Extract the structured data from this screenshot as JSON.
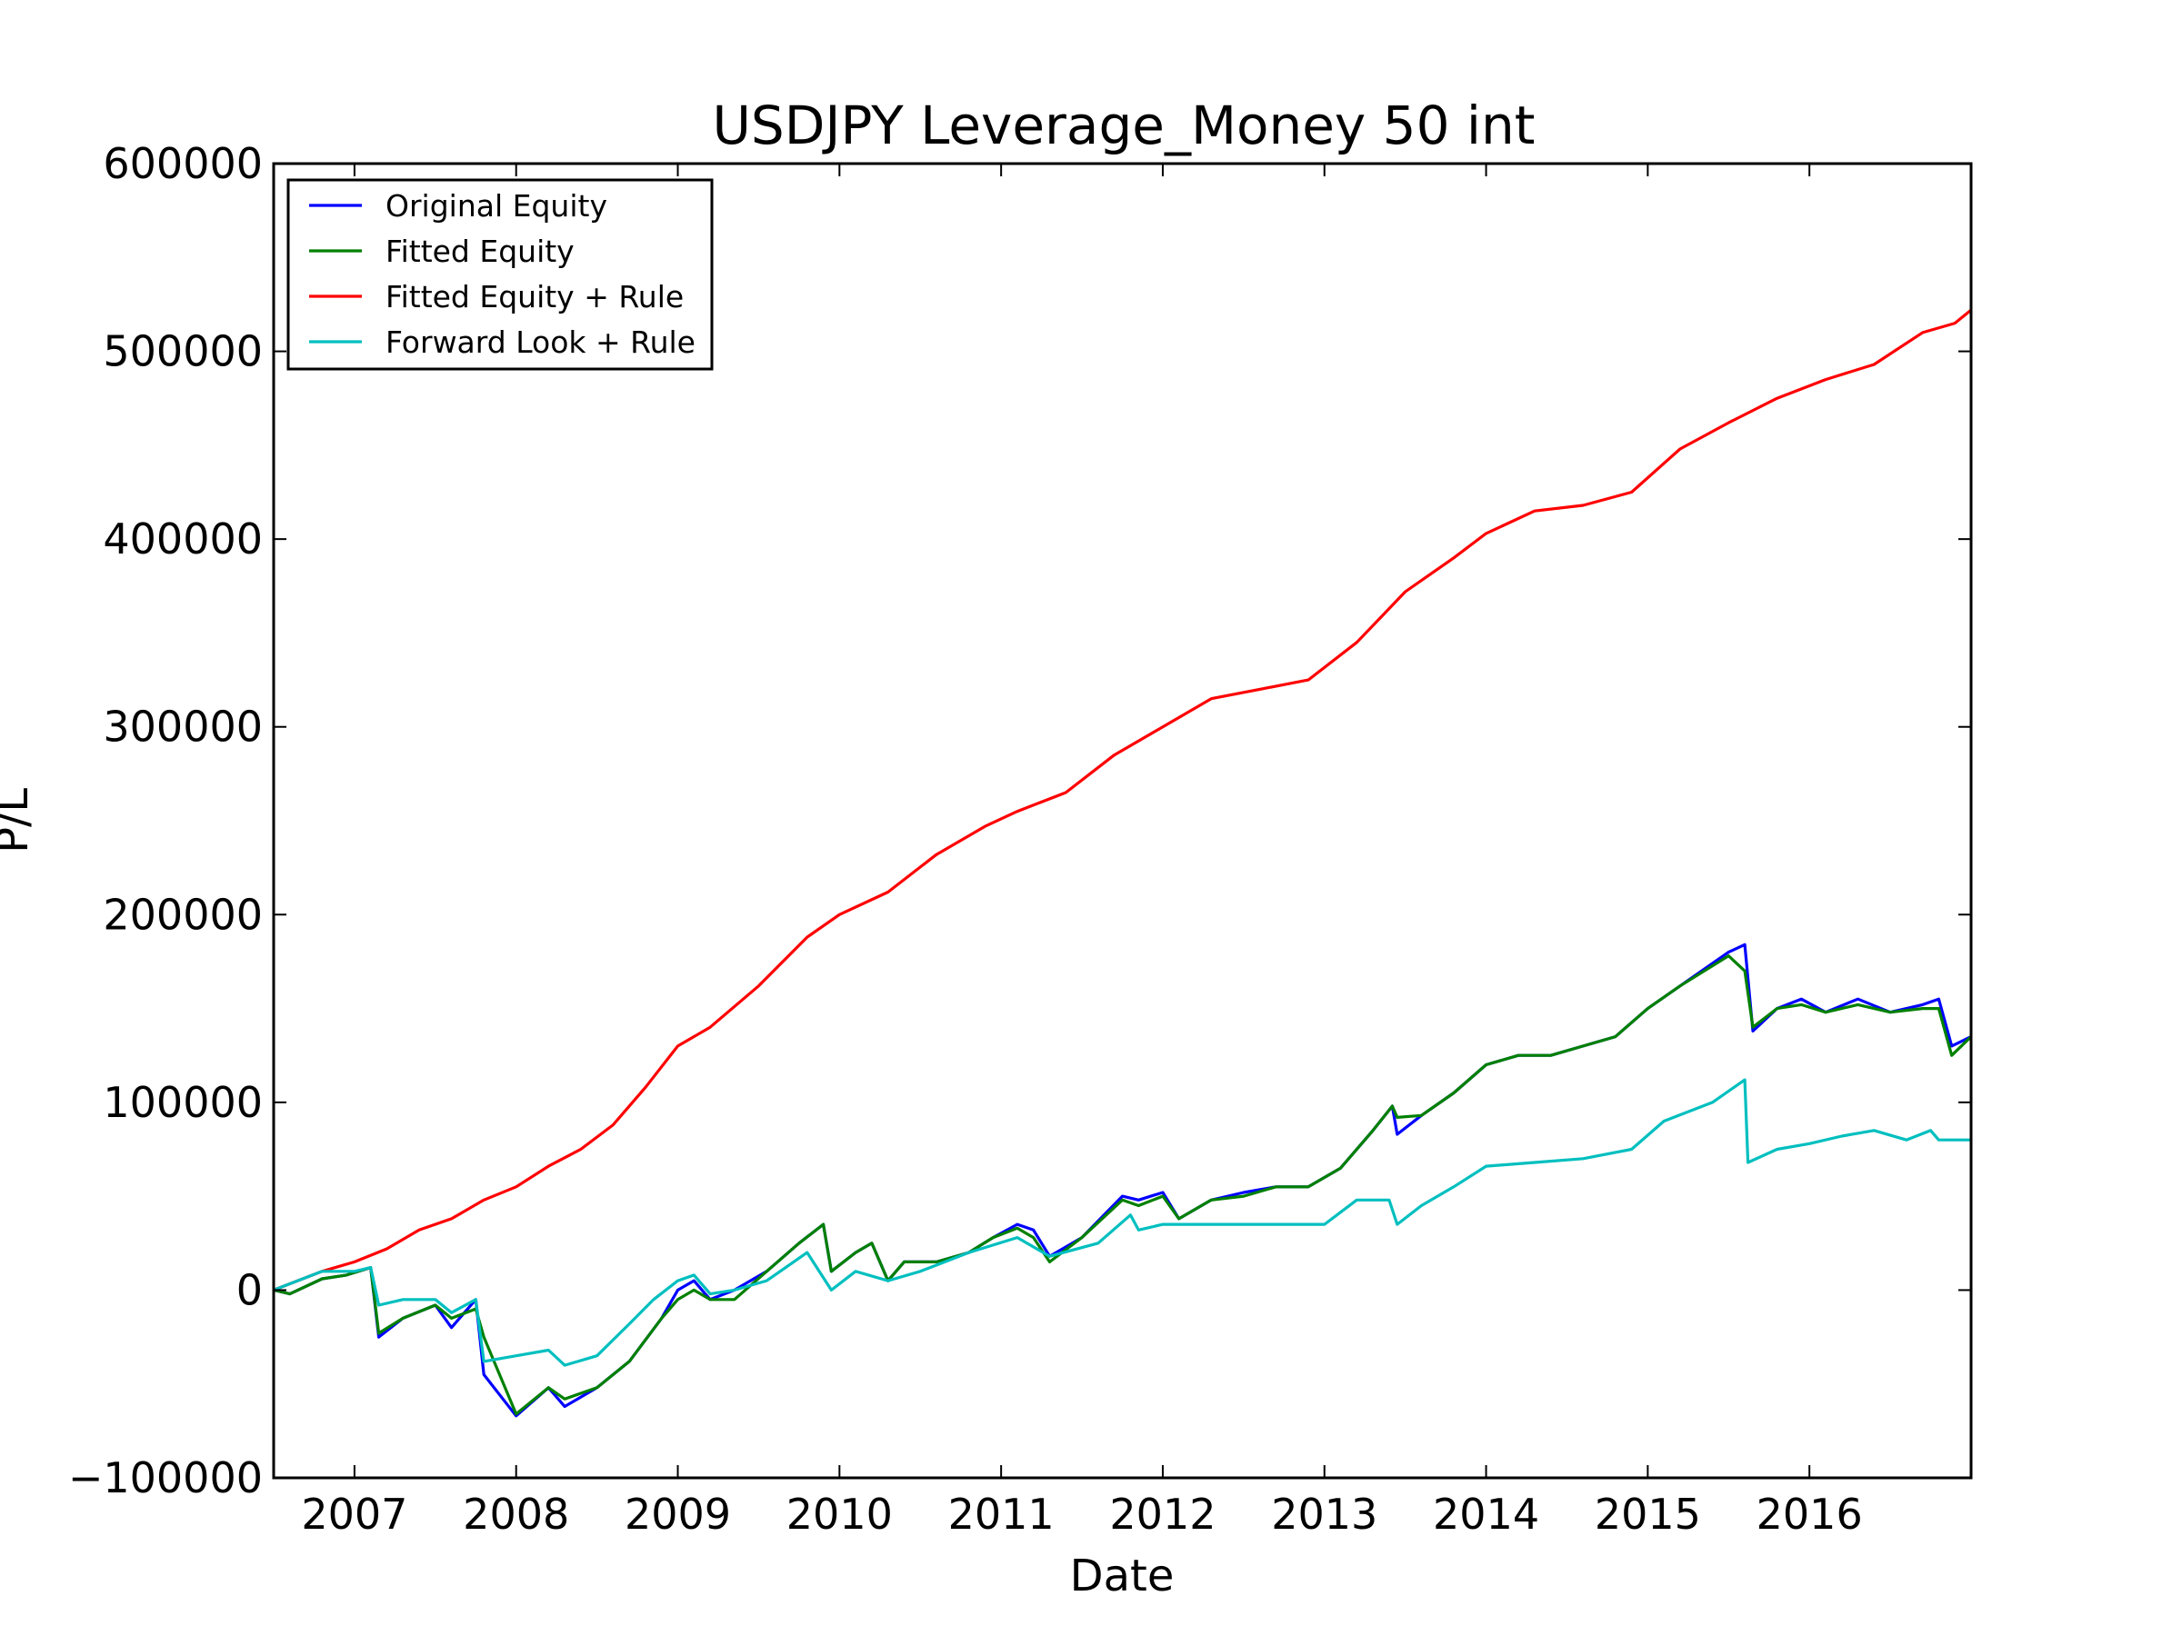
{
  "chart_data": {
    "type": "line",
    "title": "USDJPY Leverage_Money 50 int",
    "xlabel": "Date",
    "ylabel": "P/L",
    "xlim": [
      2006.5,
      2017.0
    ],
    "ylim": [
      -100000,
      600000
    ],
    "x_ticks": [
      2007,
      2008,
      2009,
      2010,
      2011,
      2012,
      2013,
      2014,
      2015,
      2016
    ],
    "x_tick_labels": [
      "2007",
      "2008",
      "2009",
      "2010",
      "2011",
      "2012",
      "2013",
      "2014",
      "2015",
      "2016"
    ],
    "y_ticks": [
      -100000,
      0,
      100000,
      200000,
      300000,
      400000,
      500000,
      600000
    ],
    "y_tick_labels": [
      "−100000",
      "0",
      "100000",
      "200000",
      "300000",
      "400000",
      "500000",
      "600000"
    ],
    "grid": false,
    "legend_position": "top-left",
    "series": [
      {
        "name": "Original Equity",
        "color": "#0000ff",
        "points": [
          [
            2006.5,
            0
          ],
          [
            2006.6,
            -2000
          ],
          [
            2006.8,
            6000
          ],
          [
            2006.95,
            8000
          ],
          [
            2007.1,
            12000
          ],
          [
            2007.15,
            -25000
          ],
          [
            2007.3,
            -15000
          ],
          [
            2007.5,
            -8000
          ],
          [
            2007.6,
            -20000
          ],
          [
            2007.75,
            -5000
          ],
          [
            2007.8,
            -45000
          ],
          [
            2008.0,
            -67000
          ],
          [
            2008.2,
            -52000
          ],
          [
            2008.3,
            -62000
          ],
          [
            2008.5,
            -52000
          ],
          [
            2008.7,
            -38000
          ],
          [
            2008.9,
            -15000
          ],
          [
            2009.0,
            0
          ],
          [
            2009.1,
            5000
          ],
          [
            2009.2,
            -5000
          ],
          [
            2009.35,
            0
          ],
          [
            2009.55,
            10000
          ],
          [
            2009.75,
            25000
          ],
          [
            2009.9,
            35000
          ],
          [
            2009.95,
            10000
          ],
          [
            2010.1,
            20000
          ],
          [
            2010.2,
            25000
          ],
          [
            2010.3,
            5000
          ],
          [
            2010.4,
            15000
          ],
          [
            2010.6,
            15000
          ],
          [
            2010.8,
            20000
          ],
          [
            2010.95,
            28000
          ],
          [
            2011.1,
            35000
          ],
          [
            2011.2,
            32000
          ],
          [
            2011.3,
            18000
          ],
          [
            2011.5,
            28000
          ],
          [
            2011.75,
            50000
          ],
          [
            2011.85,
            48000
          ],
          [
            2012.0,
            52000
          ],
          [
            2012.1,
            38000
          ],
          [
            2012.3,
            48000
          ],
          [
            2012.5,
            52000
          ],
          [
            2012.7,
            55000
          ],
          [
            2012.9,
            55000
          ],
          [
            2013.1,
            65000
          ],
          [
            2013.3,
            85000
          ],
          [
            2013.42,
            98000
          ],
          [
            2013.45,
            83000
          ],
          [
            2013.6,
            93000
          ],
          [
            2013.8,
            105000
          ],
          [
            2014.0,
            120000
          ],
          [
            2014.2,
            125000
          ],
          [
            2014.4,
            125000
          ],
          [
            2014.6,
            130000
          ],
          [
            2014.8,
            135000
          ],
          [
            2015.0,
            150000
          ],
          [
            2015.2,
            162000
          ],
          [
            2015.5,
            180000
          ],
          [
            2015.6,
            184000
          ],
          [
            2015.65,
            138000
          ],
          [
            2015.8,
            150000
          ],
          [
            2015.95,
            155000
          ],
          [
            2016.1,
            148000
          ],
          [
            2016.3,
            155000
          ],
          [
            2016.5,
            148000
          ],
          [
            2016.7,
            152000
          ],
          [
            2016.8,
            155000
          ],
          [
            2016.88,
            130000
          ],
          [
            2017.0,
            135000
          ]
        ]
      },
      {
        "name": "Fitted Equity",
        "color": "#008000",
        "points": [
          [
            2006.5,
            0
          ],
          [
            2006.6,
            -2000
          ],
          [
            2006.8,
            6000
          ],
          [
            2006.95,
            8000
          ],
          [
            2007.1,
            12000
          ],
          [
            2007.15,
            -23000
          ],
          [
            2007.3,
            -15000
          ],
          [
            2007.5,
            -8000
          ],
          [
            2007.6,
            -15000
          ],
          [
            2007.75,
            -10000
          ],
          [
            2007.8,
            -25000
          ],
          [
            2008.0,
            -66000
          ],
          [
            2008.2,
            -52000
          ],
          [
            2008.3,
            -58000
          ],
          [
            2008.5,
            -52000
          ],
          [
            2008.7,
            -38000
          ],
          [
            2008.9,
            -15000
          ],
          [
            2009.0,
            -5000
          ],
          [
            2009.1,
            0
          ],
          [
            2009.2,
            -5000
          ],
          [
            2009.35,
            -5000
          ],
          [
            2009.55,
            10000
          ],
          [
            2009.75,
            25000
          ],
          [
            2009.9,
            35000
          ],
          [
            2009.95,
            10000
          ],
          [
            2010.1,
            20000
          ],
          [
            2010.2,
            25000
          ],
          [
            2010.3,
            5000
          ],
          [
            2010.4,
            15000
          ],
          [
            2010.6,
            15000
          ],
          [
            2010.8,
            20000
          ],
          [
            2010.95,
            28000
          ],
          [
            2011.1,
            33000
          ],
          [
            2011.2,
            28000
          ],
          [
            2011.3,
            15000
          ],
          [
            2011.5,
            28000
          ],
          [
            2011.75,
            48000
          ],
          [
            2011.85,
            45000
          ],
          [
            2012.0,
            50000
          ],
          [
            2012.1,
            38000
          ],
          [
            2012.3,
            48000
          ],
          [
            2012.5,
            50000
          ],
          [
            2012.7,
            55000
          ],
          [
            2012.9,
            55000
          ],
          [
            2013.1,
            65000
          ],
          [
            2013.3,
            85000
          ],
          [
            2013.42,
            98000
          ],
          [
            2013.45,
            92000
          ],
          [
            2013.6,
            93000
          ],
          [
            2013.8,
            105000
          ],
          [
            2014.0,
            120000
          ],
          [
            2014.2,
            125000
          ],
          [
            2014.4,
            125000
          ],
          [
            2014.6,
            130000
          ],
          [
            2014.8,
            135000
          ],
          [
            2015.0,
            150000
          ],
          [
            2015.2,
            162000
          ],
          [
            2015.5,
            178000
          ],
          [
            2015.6,
            170000
          ],
          [
            2015.65,
            140000
          ],
          [
            2015.8,
            150000
          ],
          [
            2015.95,
            152000
          ],
          [
            2016.1,
            148000
          ],
          [
            2016.3,
            152000
          ],
          [
            2016.5,
            148000
          ],
          [
            2016.7,
            150000
          ],
          [
            2016.8,
            150000
          ],
          [
            2016.88,
            125000
          ],
          [
            2017.0,
            135000
          ]
        ]
      },
      {
        "name": "Fitted Equity + Rule",
        "color": "#ff0000",
        "points": [
          [
            2006.5,
            0
          ],
          [
            2006.8,
            10000
          ],
          [
            2007.0,
            15000
          ],
          [
            2007.2,
            22000
          ],
          [
            2007.4,
            32000
          ],
          [
            2007.6,
            38000
          ],
          [
            2007.8,
            48000
          ],
          [
            2008.0,
            55000
          ],
          [
            2008.2,
            66000
          ],
          [
            2008.4,
            75000
          ],
          [
            2008.6,
            88000
          ],
          [
            2008.8,
            108000
          ],
          [
            2009.0,
            130000
          ],
          [
            2009.2,
            140000
          ],
          [
            2009.5,
            162000
          ],
          [
            2009.8,
            188000
          ],
          [
            2010.0,
            200000
          ],
          [
            2010.3,
            212000
          ],
          [
            2010.6,
            232000
          ],
          [
            2010.9,
            247000
          ],
          [
            2011.1,
            255000
          ],
          [
            2011.4,
            265000
          ],
          [
            2011.7,
            285000
          ],
          [
            2012.0,
            300000
          ],
          [
            2012.3,
            315000
          ],
          [
            2012.6,
            320000
          ],
          [
            2012.9,
            325000
          ],
          [
            2013.2,
            345000
          ],
          [
            2013.5,
            372000
          ],
          [
            2013.8,
            390000
          ],
          [
            2014.0,
            403000
          ],
          [
            2014.3,
            415000
          ],
          [
            2014.6,
            418000
          ],
          [
            2014.9,
            425000
          ],
          [
            2015.2,
            448000
          ],
          [
            2015.5,
            462000
          ],
          [
            2015.8,
            475000
          ],
          [
            2016.1,
            485000
          ],
          [
            2016.4,
            493000
          ],
          [
            2016.7,
            510000
          ],
          [
            2016.9,
            515000
          ],
          [
            2017.0,
            522000
          ]
        ]
      },
      {
        "name": "Forward Look + Rule",
        "color": "#00bfbf",
        "points": [
          [
            2006.5,
            0
          ],
          [
            2006.8,
            10000
          ],
          [
            2007.0,
            10000
          ],
          [
            2007.1,
            12000
          ],
          [
            2007.15,
            -8000
          ],
          [
            2007.3,
            -5000
          ],
          [
            2007.5,
            -5000
          ],
          [
            2007.6,
            -12000
          ],
          [
            2007.75,
            -5000
          ],
          [
            2007.8,
            -38000
          ],
          [
            2008.0,
            -35000
          ],
          [
            2008.2,
            -32000
          ],
          [
            2008.3,
            -40000
          ],
          [
            2008.5,
            -35000
          ],
          [
            2008.7,
            -18000
          ],
          [
            2008.85,
            -5000
          ],
          [
            2009.0,
            5000
          ],
          [
            2009.1,
            8000
          ],
          [
            2009.2,
            -2000
          ],
          [
            2009.35,
            0
          ],
          [
            2009.55,
            5000
          ],
          [
            2009.8,
            20000
          ],
          [
            2009.95,
            0
          ],
          [
            2010.1,
            10000
          ],
          [
            2010.3,
            5000
          ],
          [
            2010.5,
            10000
          ],
          [
            2010.8,
            20000
          ],
          [
            2011.1,
            28000
          ],
          [
            2011.3,
            18000
          ],
          [
            2011.6,
            25000
          ],
          [
            2011.8,
            40000
          ],
          [
            2011.85,
            32000
          ],
          [
            2012.0,
            35000
          ],
          [
            2012.4,
            35000
          ],
          [
            2012.7,
            35000
          ],
          [
            2013.0,
            35000
          ],
          [
            2013.2,
            48000
          ],
          [
            2013.4,
            48000
          ],
          [
            2013.45,
            35000
          ],
          [
            2013.6,
            45000
          ],
          [
            2013.8,
            55000
          ],
          [
            2014.0,
            66000
          ],
          [
            2014.3,
            68000
          ],
          [
            2014.6,
            70000
          ],
          [
            2014.9,
            75000
          ],
          [
            2015.1,
            90000
          ],
          [
            2015.4,
            100000
          ],
          [
            2015.6,
            112000
          ],
          [
            2015.62,
            68000
          ],
          [
            2015.8,
            75000
          ],
          [
            2016.0,
            78000
          ],
          [
            2016.2,
            82000
          ],
          [
            2016.4,
            85000
          ],
          [
            2016.6,
            80000
          ],
          [
            2016.75,
            85000
          ],
          [
            2016.8,
            80000
          ],
          [
            2017.0,
            80000
          ]
        ]
      }
    ]
  }
}
